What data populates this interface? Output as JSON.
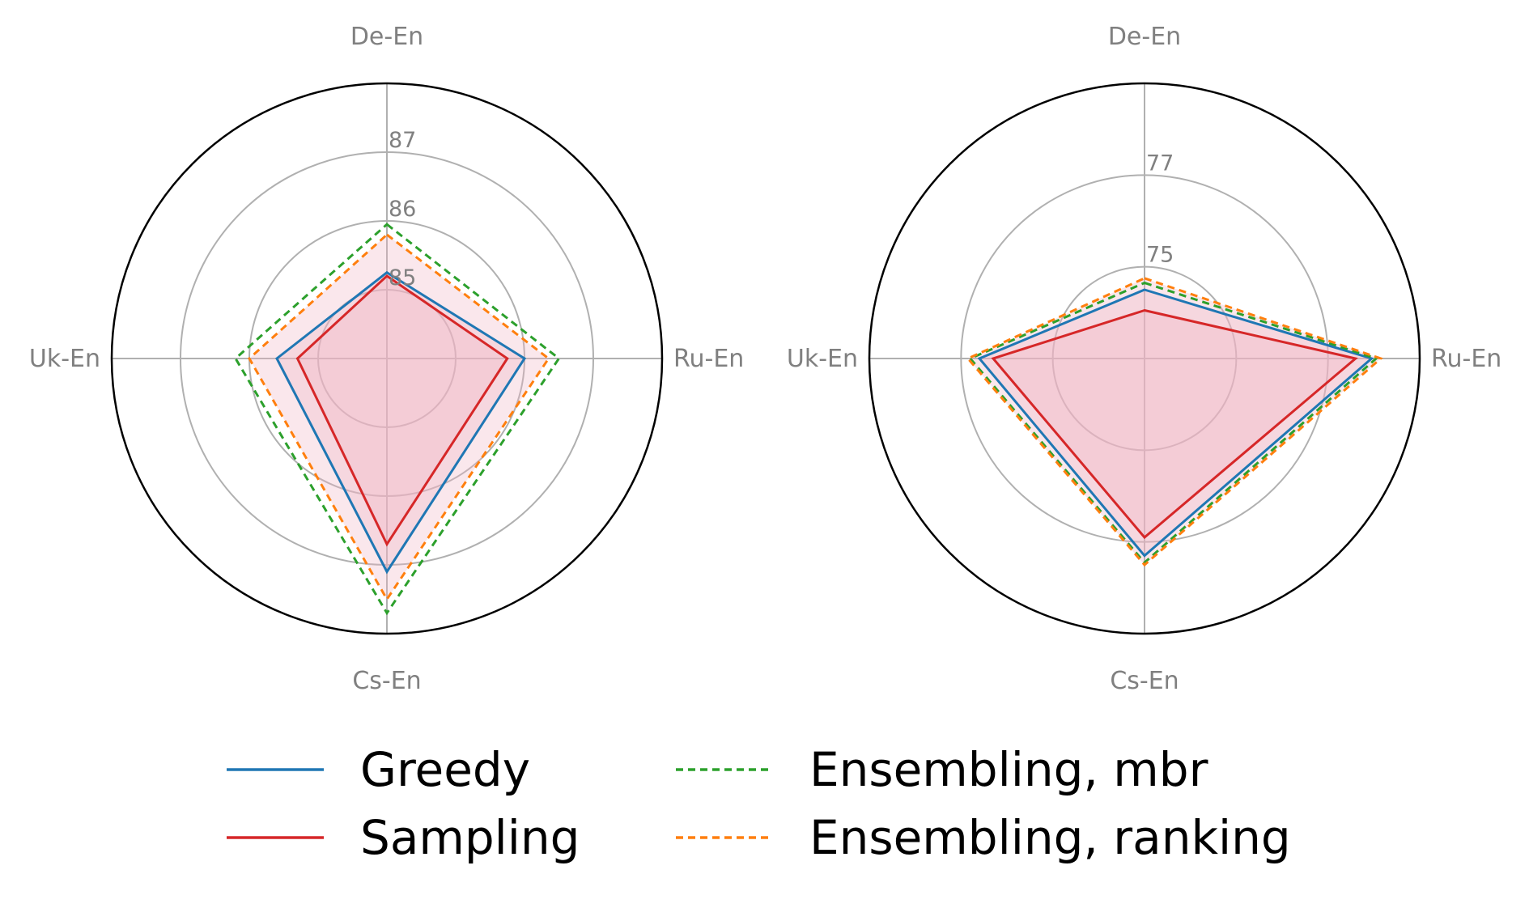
{
  "chart_data": [
    {
      "type": "radar",
      "axes": [
        "De-En",
        "Ru-En",
        "Cs-En",
        "Uk-En"
      ],
      "r_range": [
        84,
        88
      ],
      "r_ticks": [
        85,
        86,
        87
      ],
      "r_tick_labels": [
        "85",
        "86",
        "87"
      ],
      "series": [
        {
          "name": "Greedy",
          "values": [
            85.25,
            86.0,
            87.1,
            85.6
          ]
        },
        {
          "name": "Sampling",
          "values": [
            85.2,
            85.75,
            86.7,
            85.3
          ]
        },
        {
          "name": "Ensembling, mbr",
          "values": [
            85.95,
            86.5,
            87.7,
            86.2
          ]
        },
        {
          "name": "Ensembling, ranking",
          "values": [
            85.8,
            86.35,
            87.5,
            86.0
          ]
        }
      ]
    },
    {
      "type": "radar",
      "axes": [
        "De-En",
        "Ru-En",
        "Cs-En",
        "Uk-En"
      ],
      "r_range": [
        73,
        79
      ],
      "r_ticks": [
        75,
        77
      ],
      "r_tick_labels": [
        "75",
        "77"
      ],
      "series": [
        {
          "name": "Greedy",
          "values": [
            74.5,
            77.95,
            77.3,
            76.6
          ]
        },
        {
          "name": "Sampling",
          "values": [
            74.05,
            77.6,
            76.9,
            76.3
          ]
        },
        {
          "name": "Ensembling, mbr",
          "values": [
            74.65,
            78.05,
            77.45,
            76.8
          ]
        },
        {
          "name": "Ensembling, ranking",
          "values": [
            74.75,
            78.15,
            77.5,
            76.85
          ]
        }
      ]
    }
  ],
  "legend": [
    {
      "label": "Greedy",
      "color": "#1f77b4",
      "dashed": false
    },
    {
      "label": "Sampling",
      "color": "#d62728",
      "dashed": false
    },
    {
      "label": "Ensembling, mbr",
      "color": "#2ca02c",
      "dashed": true
    },
    {
      "label": "Ensembling, ranking",
      "color": "#ff7f0e",
      "dashed": true
    }
  ],
  "colors": {
    "greedy": "#1f77b4",
    "sampling": "#d62728",
    "mbr": "#2ca02c",
    "ranking": "#ff7f0e",
    "fill": "#f0b4c4",
    "grid": "#b0b0b0",
    "frame": "#000000",
    "label": "#808080"
  }
}
